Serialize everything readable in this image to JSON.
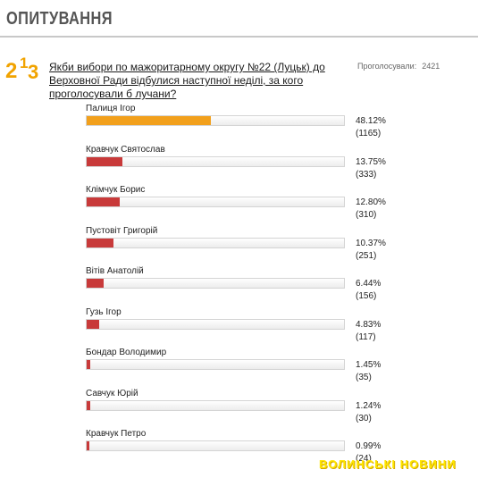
{
  "header": {
    "title": "ОПИТУВАННЯ"
  },
  "logo": {
    "text": "213"
  },
  "poll": {
    "question": "Якби вибори по мажоритарному округу №22 (Луцьк) до Верховної Ради відбулися наступної неділі, за кого проголосували б лучани?",
    "total_label": "Проголосували:",
    "total_value": "2421",
    "colors": {
      "leader": "#f2a01c",
      "other": "#c83a3a"
    },
    "options": [
      {
        "name": "Палиця Ігор",
        "percent": "48.12%",
        "count": "(1165)",
        "share": 48.12,
        "leader": true
      },
      {
        "name": "Кравчук Святослав",
        "percent": "13.75%",
        "count": "(333)",
        "share": 13.75,
        "leader": false
      },
      {
        "name": "Клімчук Борис",
        "percent": "12.80%",
        "count": "(310)",
        "share": 12.8,
        "leader": false
      },
      {
        "name": "Пустовіт Григорій",
        "percent": "10.37%",
        "count": "(251)",
        "share": 10.37,
        "leader": false
      },
      {
        "name": "Вітів Анатолій",
        "percent": "6.44%",
        "count": "(156)",
        "share": 6.44,
        "leader": false
      },
      {
        "name": "Гузь Ігор",
        "percent": "4.83%",
        "count": "(117)",
        "share": 4.83,
        "leader": false
      },
      {
        "name": "Бондар Володимир",
        "percent": "1.45%",
        "count": "(35)",
        "share": 1.45,
        "leader": false
      },
      {
        "name": "Савчук Юрій",
        "percent": "1.24%",
        "count": "(30)",
        "share": 1.24,
        "leader": false
      },
      {
        "name": "Кравчук Петро",
        "percent": "0.99%",
        "count": "(24)",
        "share": 0.99,
        "leader": false
      }
    ]
  },
  "watermark": {
    "text": "ВОЛИНСЬКІ НОВИНИ"
  }
}
